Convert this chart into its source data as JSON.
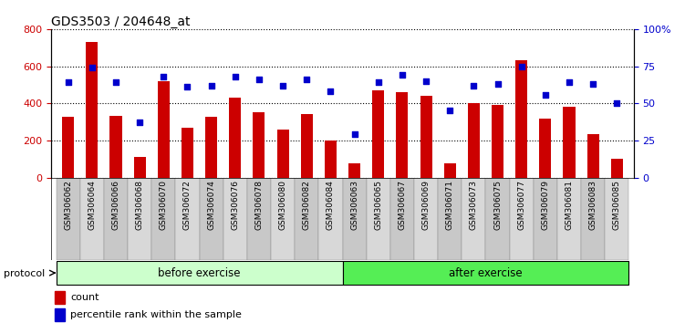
{
  "title": "GDS3503 / 204648_at",
  "categories": [
    "GSM306062",
    "GSM306064",
    "GSM306066",
    "GSM306068",
    "GSM306070",
    "GSM306072",
    "GSM306074",
    "GSM306076",
    "GSM306078",
    "GSM306080",
    "GSM306082",
    "GSM306084",
    "GSM306063",
    "GSM306065",
    "GSM306067",
    "GSM306069",
    "GSM306071",
    "GSM306073",
    "GSM306075",
    "GSM306077",
    "GSM306079",
    "GSM306081",
    "GSM306083",
    "GSM306085"
  ],
  "counts": [
    330,
    730,
    335,
    110,
    520,
    270,
    330,
    430,
    350,
    260,
    340,
    200,
    75,
    470,
    460,
    440,
    75,
    400,
    390,
    630,
    320,
    380,
    235,
    100
  ],
  "percentile": [
    64,
    74,
    64,
    37,
    68,
    61,
    62,
    68,
    66,
    62,
    66,
    58,
    29,
    64,
    69,
    65,
    45,
    62,
    63,
    75,
    56,
    64,
    63,
    50
  ],
  "before_exercise_count": 12,
  "after_exercise_count": 12,
  "bar_color": "#cc0000",
  "dot_color": "#0000cc",
  "before_bg": "#ccffcc",
  "after_bg": "#55ee55",
  "left_ylim": [
    0,
    800
  ],
  "right_ylim": [
    0,
    100
  ],
  "left_yticks": [
    0,
    200,
    400,
    600,
    800
  ],
  "right_yticks": [
    0,
    25,
    50,
    75,
    100
  ],
  "right_yticklabels": [
    "0",
    "25",
    "50",
    "75",
    "100%"
  ]
}
